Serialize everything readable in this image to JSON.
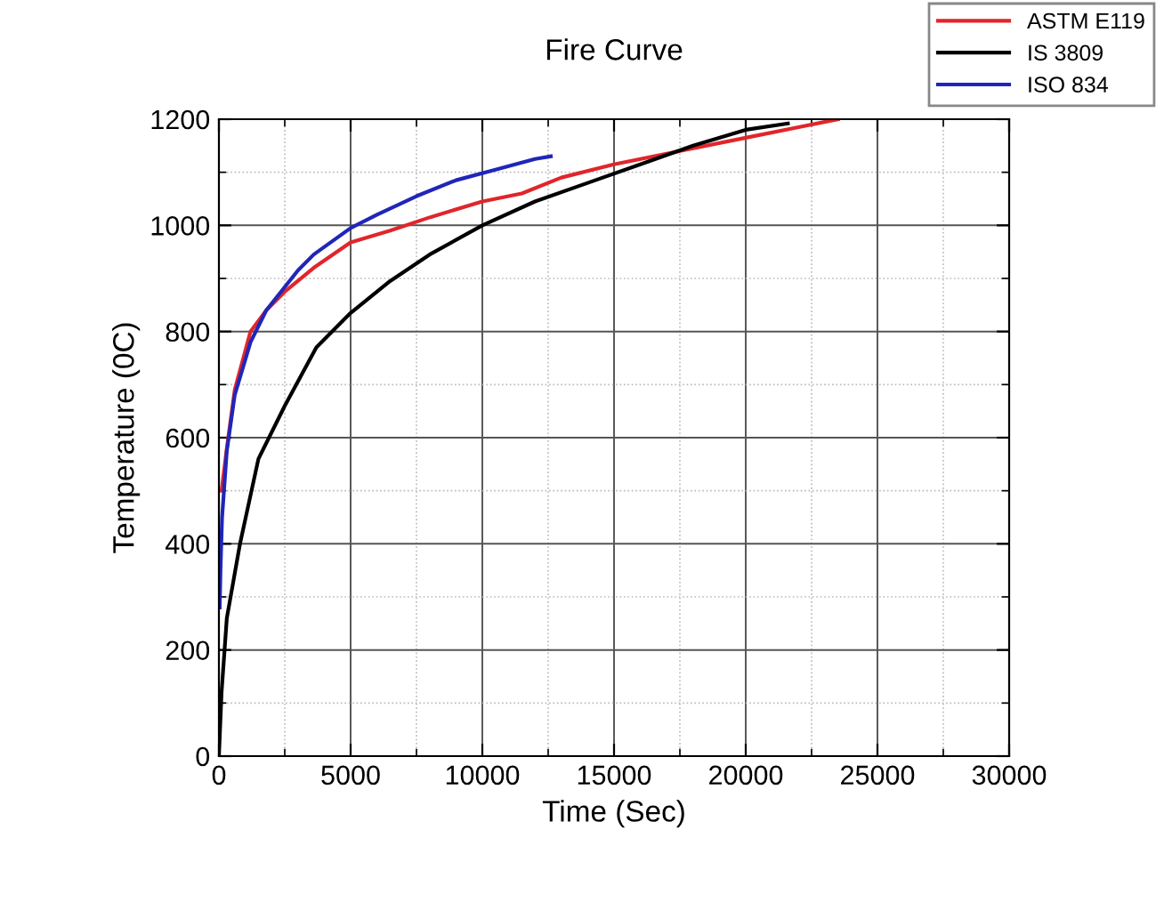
{
  "chart_data": {
    "type": "line",
    "title": "Fire Curve",
    "xlabel": "Time (Sec)",
    "ylabel": "Temperature (0C)",
    "xlim": [
      0,
      30000
    ],
    "ylim": [
      0,
      1200
    ],
    "xticks": [
      0,
      5000,
      10000,
      15000,
      20000,
      25000,
      30000
    ],
    "yticks": [
      0,
      200,
      400,
      600,
      800,
      1000,
      1200
    ],
    "grid": true,
    "legend": "top right",
    "marker": "none",
    "line_style": "solid",
    "series": [
      {
        "name": "ASTM E119",
        "color": "#e0262b",
        "x": [
          100,
          300,
          600,
          1200,
          1800,
          2500,
          3600,
          5000,
          6500,
          8000,
          10000,
          11500,
          13000,
          15000,
          17500,
          20000,
          22000,
          23500
        ],
        "values": [
          500,
          580,
          690,
          800,
          840,
          875,
          920,
          968,
          990,
          1015,
          1045,
          1060,
          1090,
          1115,
          1140,
          1165,
          1185,
          1200
        ]
      },
      {
        "name": "IS 3809",
        "color": "#000000",
        "x": [
          0,
          100,
          300,
          800,
          1500,
          2500,
          3700,
          5000,
          6500,
          8000,
          10000,
          12000,
          14000,
          16000,
          18000,
          20000,
          21600
        ],
        "values": [
          0,
          120,
          260,
          400,
          560,
          660,
          770,
          835,
          895,
          945,
          1000,
          1045,
          1080,
          1115,
          1150,
          1180,
          1192
        ]
      },
      {
        "name": "ISO 834",
        "color": "#2026b8",
        "x": [
          30,
          60,
          120,
          300,
          600,
          1200,
          1800,
          3000,
          3600,
          5000,
          6000,
          7500,
          9000,
          10500,
          12000,
          12600
        ],
        "values": [
          280,
          350,
          450,
          575,
          680,
          780,
          840,
          915,
          945,
          995,
          1020,
          1055,
          1085,
          1105,
          1125,
          1130
        ]
      }
    ]
  }
}
